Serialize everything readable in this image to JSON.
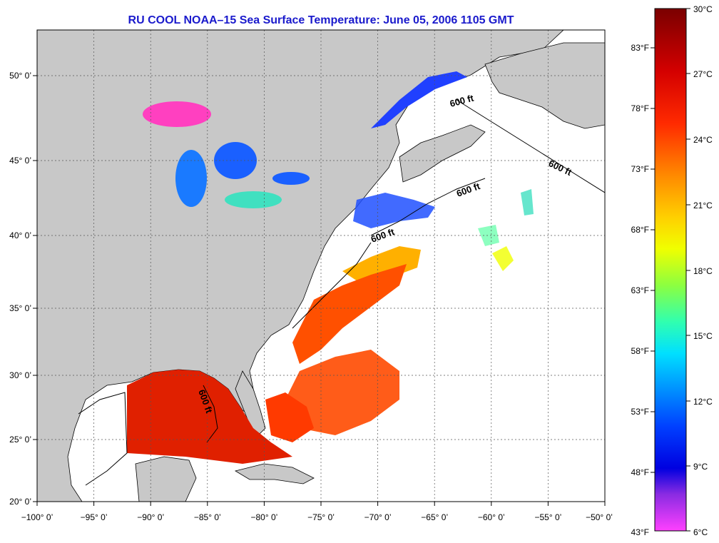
{
  "title": "RU COOL  NOAA–15  Sea Surface Temperature:  June 05, 2006 1105 GMT",
  "map": {
    "lon_ticks": [
      "−100° 0’",
      "−95° 0’",
      "−90° 0’",
      "−85° 0’",
      "−80° 0’",
      "−75° 0’",
      "−70° 0’",
      "−65° 0’",
      "−60° 0’",
      "−55° 0’",
      "−50° 0’"
    ],
    "lat_ticks": [
      "50° 0’",
      "45° 0’",
      "40° 0’",
      "35° 0’",
      "30° 0’",
      "25° 0’",
      "20° 0’"
    ],
    "isobath_label": "600 ft",
    "land_color": "#c8c8c8",
    "ocean_color": "#ffffff"
  },
  "colorbar": {
    "celsius": [
      "30°C",
      "27°C",
      "24°C",
      "21°C",
      "18°C",
      "15°C",
      "12°C",
      "9°C",
      "6°C"
    ],
    "fahrenheit": [
      "83°F",
      "78°F",
      "73°F",
      "68°F",
      "63°F",
      "58°F",
      "53°F",
      "48°F",
      "43°F"
    ],
    "colors": [
      "#7a0000",
      "#d40000",
      "#ff2a00",
      "#ff7a00",
      "#ffcc00",
      "#f0ff00",
      "#9cff3a",
      "#33ffb0",
      "#00e0ff",
      "#0090ff",
      "#0030ff",
      "#0000e6",
      "#8a2be2",
      "#ff40ff"
    ]
  }
}
